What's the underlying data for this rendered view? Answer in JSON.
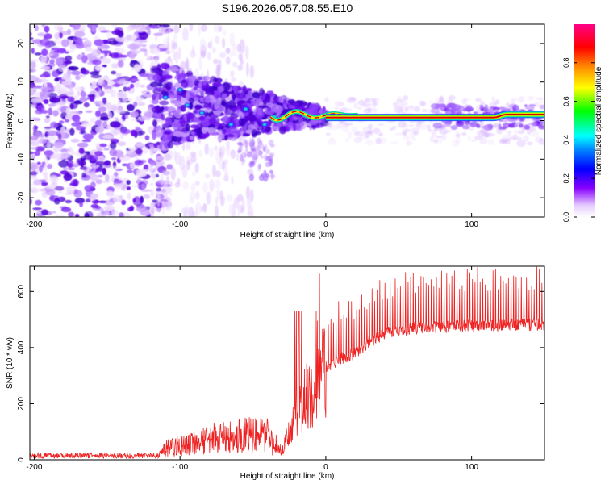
{
  "title": "S196.2026.057.08.55.E10",
  "colors": {
    "snr_line": "#ee2222",
    "axis": "#000000",
    "signal_core": "#d40000",
    "background": "#ffffff"
  },
  "chart_data": [
    {
      "type": "heatmap",
      "name": "spectrogram",
      "xlabel": "Height of straight line (km)",
      "ylabel": "Frequency (Hz)",
      "xlim": [
        -203,
        150
      ],
      "ylim": [
        -25,
        25
      ],
      "xticks": [
        -200,
        -100,
        0,
        100
      ],
      "yticks": [
        -20,
        -10,
        0,
        10,
        20
      ],
      "colorbar": {
        "label": "Normalized spectral amplitude",
        "range": [
          0,
          1
        ],
        "ticks": [
          0.0,
          0.2,
          0.4,
          0.6,
          0.8
        ]
      },
      "description_points": {
        "carrier_line_from_km": 0,
        "carrier_frequency_hz": 0.8,
        "carrier_rise_at_km": 115,
        "carrier_frequency_end_hz": 1.6,
        "noise_dense_until_km": -115
      }
    },
    {
      "type": "line",
      "name": "snr",
      "xlabel": "Height of straight line (km)",
      "ylabel": "SNR (10 * v/v)",
      "xlim": [
        -203,
        150
      ],
      "ylim": [
        0,
        690
      ],
      "xticks": [
        -200,
        -100,
        0,
        100
      ],
      "yticks": [
        0,
        200,
        400,
        600
      ],
      "profile_x": [
        -203,
        -115,
        -110,
        -90,
        -70,
        -50,
        -40,
        -30,
        -25,
        -15,
        -5,
        0,
        10,
        20,
        30,
        40,
        60,
        80,
        100,
        120,
        150
      ],
      "profile_y": [
        15,
        15,
        40,
        60,
        80,
        90,
        80,
        30,
        100,
        210,
        290,
        330,
        360,
        380,
        420,
        450,
        470,
        475,
        478,
        480,
        482
      ]
    }
  ]
}
